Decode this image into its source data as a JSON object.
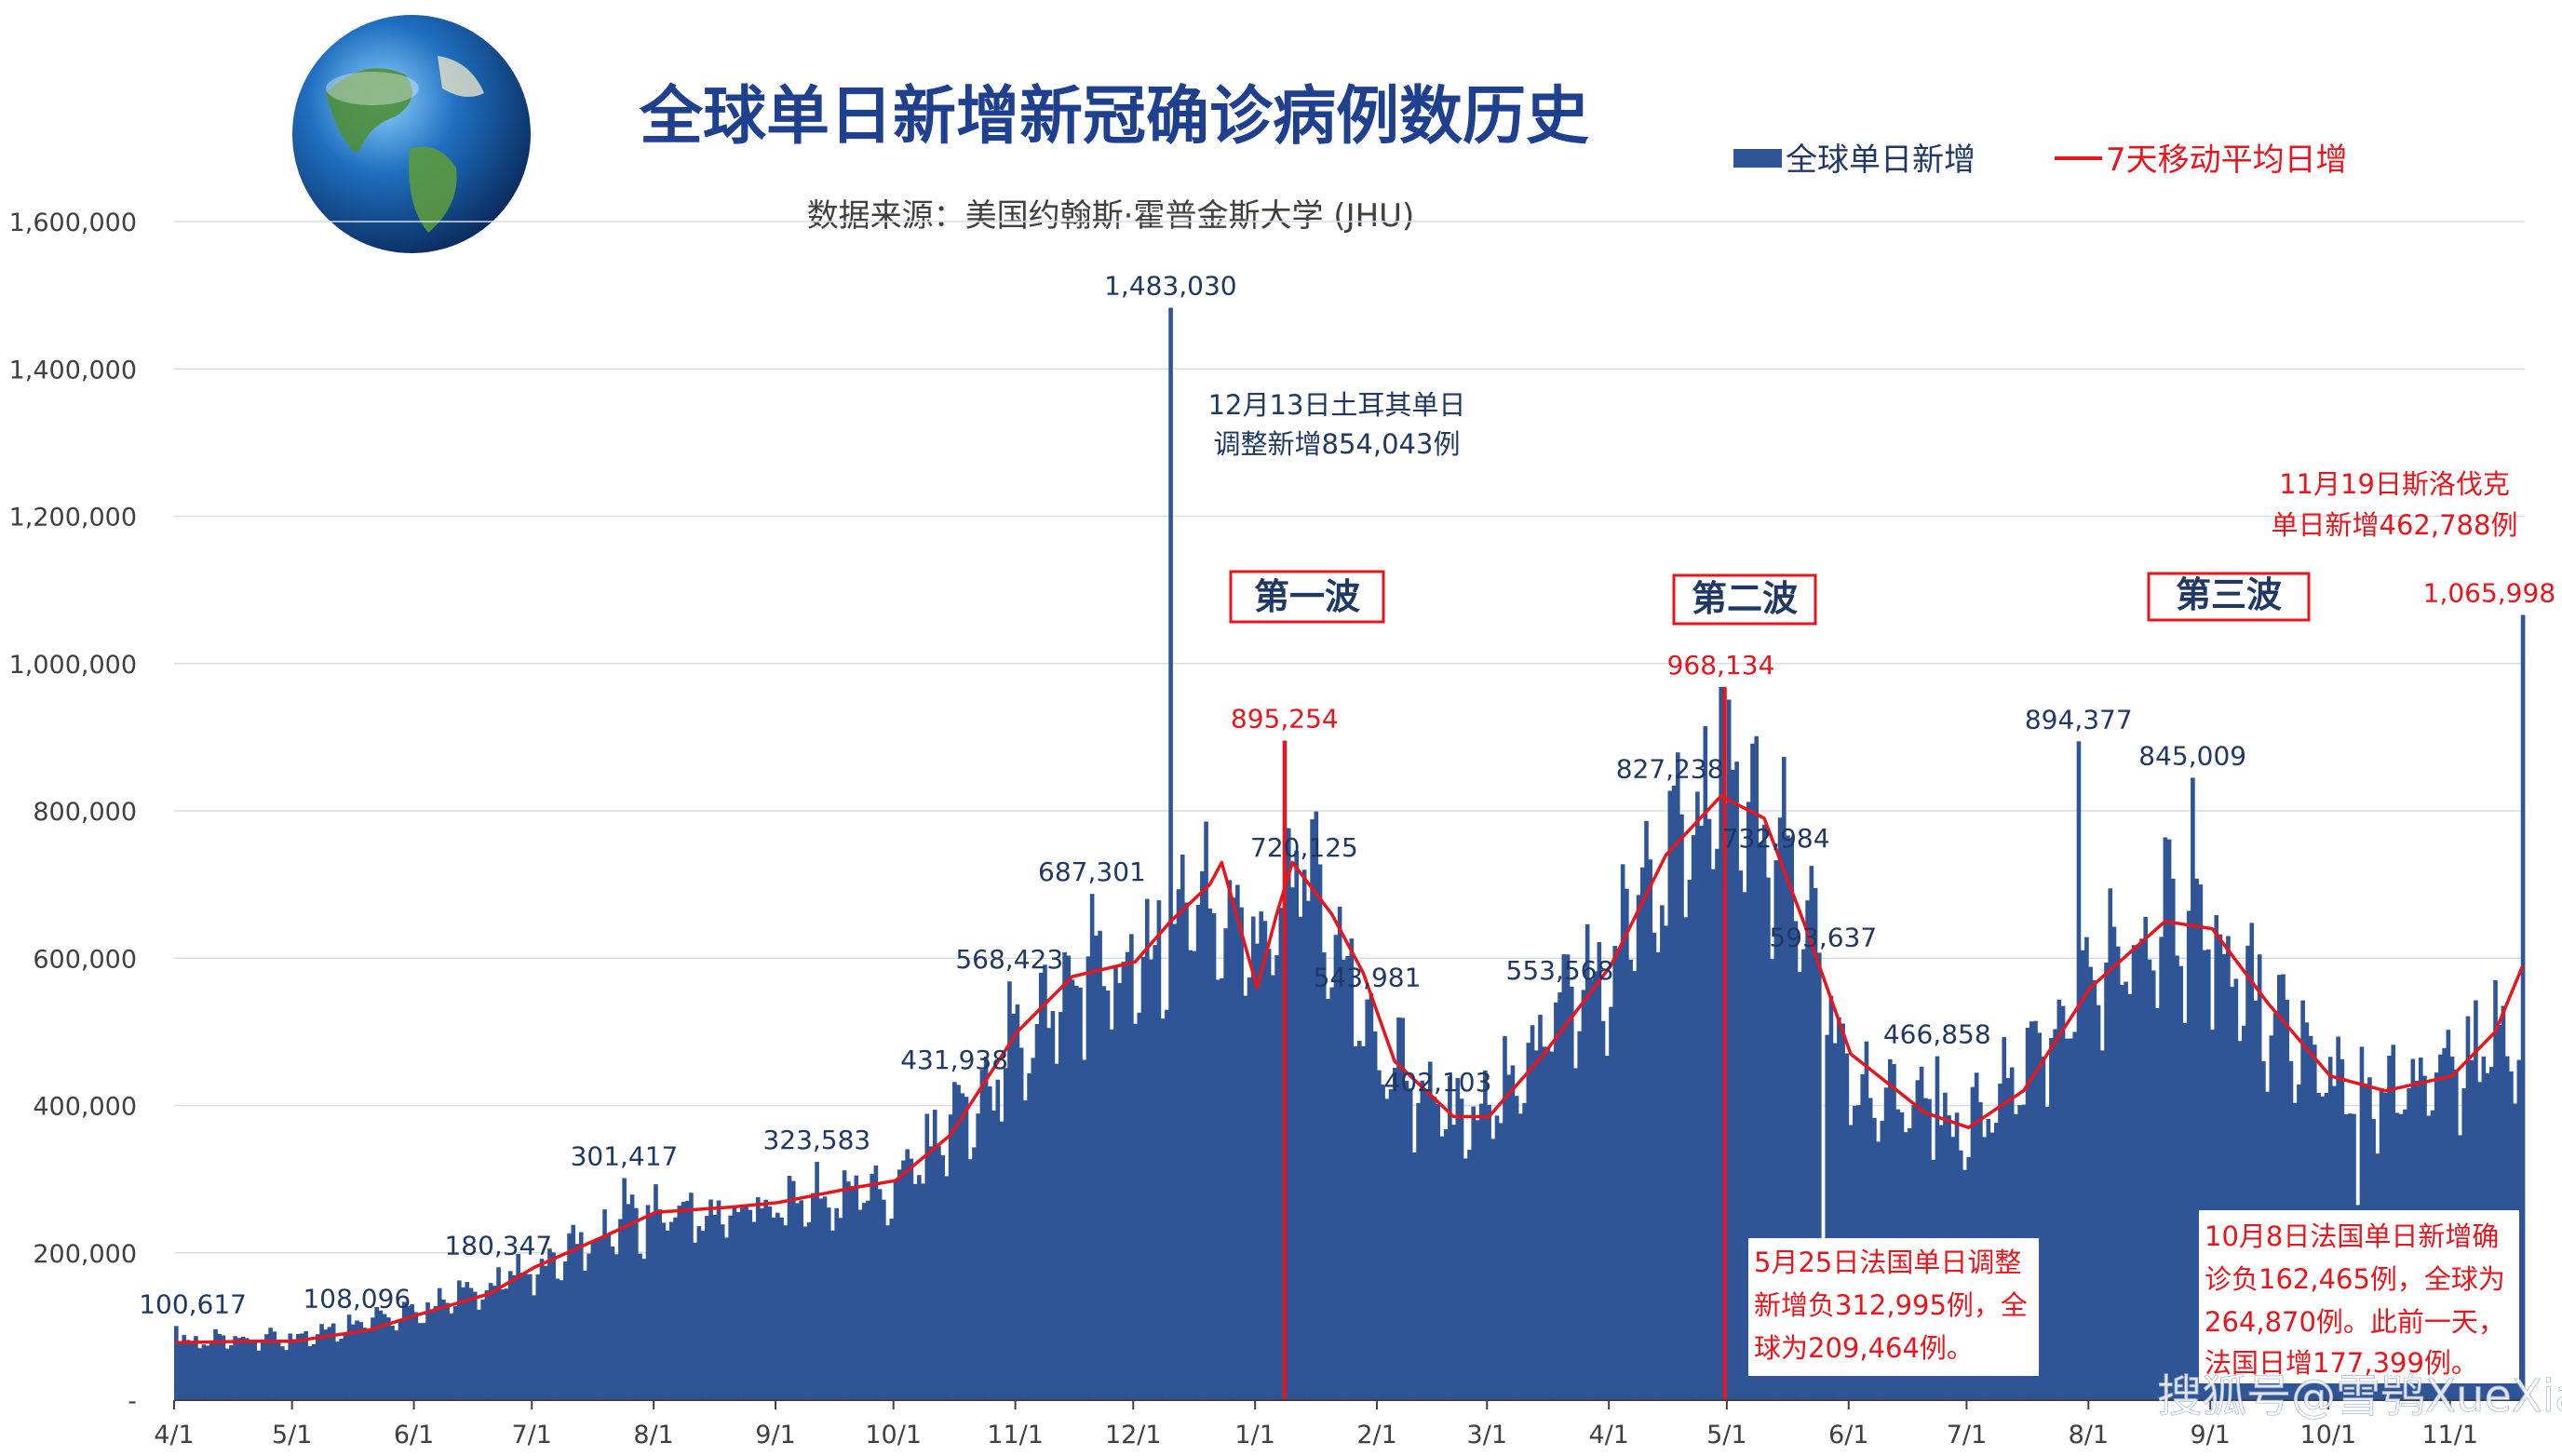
{
  "title": "全球单日新增新冠确诊病例数历史",
  "subtitle": "数据来源：美国约翰斯·霍普金斯大学 (JHU)",
  "watermark": "搜狐号@雪鸮XueXiao",
  "colors": {
    "bar": "#2F5597",
    "line": "#E8161C",
    "title": "#1F3F8F",
    "text": "#1F3864",
    "red": "#E8161C",
    "grid": "#D6DCE5"
  },
  "chart_data": {
    "type": "bar",
    "ylim": [
      0,
      1600000
    ],
    "yticks": [
      0,
      200000,
      400000,
      600000,
      800000,
      1000000,
      1200000,
      1400000,
      1600000
    ],
    "ytick_labels": [
      "-",
      "200,000",
      "400,000",
      "600,000",
      "800,000",
      "1,000,000",
      "1,200,000",
      "1,400,000",
      "1,600,000"
    ],
    "xtick_labels": [
      "4/1",
      "5/1",
      "6/1",
      "7/1",
      "8/1",
      "9/1",
      "10/1",
      "11/1",
      "12/1",
      "1/1",
      "2/1",
      "3/1",
      "4/1",
      "5/1",
      "6/1",
      "7/1",
      "8/1",
      "9/1",
      "10/1",
      "11/1"
    ],
    "x_start": "2020-04-01",
    "x_end": "2021-11-19",
    "legend": {
      "bar_label": "全球单日新增",
      "line_label": "7天移动平均日增",
      "position": "top-right"
    },
    "series": [
      {
        "name": "全球单日新增",
        "kind": "bar",
        "daily_trend_anchors": [
          [
            "2020-04-01",
            80000
          ],
          [
            "2020-05-01",
            85000
          ],
          [
            "2020-06-01",
            120000
          ],
          [
            "2020-07-01",
            180000
          ],
          [
            "2020-08-01",
            255000
          ],
          [
            "2020-09-01",
            265000
          ],
          [
            "2020-10-01",
            295000
          ],
          [
            "2020-10-20",
            400000
          ],
          [
            "2020-11-01",
            470000
          ],
          [
            "2020-11-15",
            570000
          ],
          [
            "2020-12-01",
            590000
          ],
          [
            "2020-12-20",
            680000
          ],
          [
            "2021-01-01",
            640000
          ],
          [
            "2021-01-15",
            700000
          ],
          [
            "2021-02-01",
            480000
          ],
          [
            "2021-02-20",
            380000
          ],
          [
            "2021-03-01",
            400000
          ],
          [
            "2021-03-20",
            520000
          ],
          [
            "2021-04-01",
            600000
          ],
          [
            "2021-04-20",
            780000
          ],
          [
            "2021-04-30",
            820000
          ],
          [
            "2021-05-15",
            750000
          ],
          [
            "2021-06-01",
            430000
          ],
          [
            "2021-06-20",
            380000
          ],
          [
            "2021-07-01",
            370000
          ],
          [
            "2021-07-20",
            480000
          ],
          [
            "2021-08-01",
            600000
          ],
          [
            "2021-08-20",
            660000
          ],
          [
            "2021-09-01",
            640000
          ],
          [
            "2021-09-20",
            500000
          ],
          [
            "2021-10-01",
            430000
          ],
          [
            "2021-10-15",
            420000
          ],
          [
            "2021-11-01",
            450000
          ],
          [
            "2021-11-18",
            520000
          ]
        ],
        "labeled_points": [
          {
            "date": "2020-04-01",
            "value": 100617,
            "label": "100,617"
          },
          {
            "date": "2020-05-17",
            "value": 108096,
            "label": "108,096"
          },
          {
            "date": "2020-06-22",
            "value": 180347,
            "label": "180,347"
          },
          {
            "date": "2020-07-24",
            "value": 301417,
            "label": "301,417"
          },
          {
            "date": "2020-09-11",
            "value": 323583,
            "label": "323,583"
          },
          {
            "date": "2020-10-16",
            "value": 431938,
            "label": "431,938"
          },
          {
            "date": "2020-10-30",
            "value": 568423,
            "label": "568,423"
          },
          {
            "date": "2020-11-20",
            "value": 687301,
            "label": "687,301"
          },
          {
            "date": "2020-12-10",
            "value": 1483030,
            "label": "1,483,030"
          },
          {
            "date": "2021-01-08",
            "value": 895254,
            "label": "895,254",
            "red": true
          },
          {
            "date": "2021-01-13",
            "value": 720125,
            "label": "720,125"
          },
          {
            "date": "2021-01-29",
            "value": 543981,
            "label": "543,981"
          },
          {
            "date": "2021-02-16",
            "value": 402103,
            "label": "402,103"
          },
          {
            "date": "2021-03-19",
            "value": 553568,
            "label": "553,568"
          },
          {
            "date": "2021-04-16",
            "value": 827238,
            "label": "827,238"
          },
          {
            "date": "2021-04-29",
            "value": 968134,
            "label": "968,134",
            "red": true
          },
          {
            "date": "2021-05-13",
            "value": 732984,
            "label": "732,984"
          },
          {
            "date": "2021-05-25",
            "value": 209464,
            "label": "209,464",
            "red": true
          },
          {
            "date": "2021-05-25",
            "value": 593637,
            "label": "593,637"
          },
          {
            "date": "2021-06-23",
            "value": 466858,
            "label": "466,858"
          },
          {
            "date": "2021-07-29",
            "value": 894377,
            "label": "894,377"
          },
          {
            "date": "2021-08-27",
            "value": 845009,
            "label": "845,009"
          },
          {
            "date": "2021-10-08",
            "value": 264870,
            "label": "264,870",
            "red": true
          },
          {
            "date": "2021-11-19",
            "value": 1065998,
            "label": "1,065,998",
            "red": true
          }
        ]
      },
      {
        "name": "7天移动平均日增",
        "kind": "line",
        "points": [
          [
            "2020-04-01",
            78000
          ],
          [
            "2020-04-20",
            80000
          ],
          [
            "2020-05-01",
            80000
          ],
          [
            "2020-05-20",
            95000
          ],
          [
            "2020-06-01",
            115000
          ],
          [
            "2020-06-20",
            145000
          ],
          [
            "2020-07-01",
            180000
          ],
          [
            "2020-07-20",
            225000
          ],
          [
            "2020-08-01",
            255000
          ],
          [
            "2020-08-20",
            262000
          ],
          [
            "2020-09-01",
            268000
          ],
          [
            "2020-09-20",
            288000
          ],
          [
            "2020-10-01",
            298000
          ],
          [
            "2020-10-15",
            360000
          ],
          [
            "2020-11-01",
            500000
          ],
          [
            "2020-11-15",
            575000
          ],
          [
            "2020-12-01",
            595000
          ],
          [
            "2020-12-10",
            650000
          ],
          [
            "2020-12-20",
            700000
          ],
          [
            "2020-12-23",
            730000
          ],
          [
            "2021-01-01",
            560000
          ],
          [
            "2021-01-06",
            660000
          ],
          [
            "2021-01-10",
            730000
          ],
          [
            "2021-01-20",
            660000
          ],
          [
            "2021-01-28",
            580000
          ],
          [
            "2021-02-05",
            460000
          ],
          [
            "2021-02-20",
            385000
          ],
          [
            "2021-03-01",
            385000
          ],
          [
            "2021-03-15",
            470000
          ],
          [
            "2021-04-01",
            590000
          ],
          [
            "2021-04-15",
            740000
          ],
          [
            "2021-04-29",
            820000
          ],
          [
            "2021-05-10",
            790000
          ],
          [
            "2021-05-20",
            650000
          ],
          [
            "2021-06-01",
            470000
          ],
          [
            "2021-06-20",
            390000
          ],
          [
            "2021-07-01",
            370000
          ],
          [
            "2021-07-15",
            420000
          ],
          [
            "2021-08-01",
            560000
          ],
          [
            "2021-08-20",
            650000
          ],
          [
            "2021-09-01",
            640000
          ],
          [
            "2021-09-15",
            540000
          ],
          [
            "2021-10-01",
            440000
          ],
          [
            "2021-10-15",
            420000
          ],
          [
            "2021-11-01",
            440000
          ],
          [
            "2021-11-12",
            500000
          ],
          [
            "2021-11-19",
            590000
          ]
        ]
      }
    ],
    "annotations": [
      {
        "lines": [
          "12月13日土耳其单日",
          "调整新增854,043例"
        ],
        "color": "#1F3864"
      },
      {
        "lines": [
          "11月19日斯洛伐克",
          "单日新增462,788例"
        ],
        "color": "#E8161C"
      },
      {
        "lines": [
          "5月25日法国单日调整",
          "新增负312,995例，全",
          "球为209,464例。"
        ],
        "color": "#E8161C"
      },
      {
        "lines": [
          "10月8日法国单日新增确",
          "诊负162,465例，全球为",
          "264,870例。此前一天，",
          "法国日增177,399例。"
        ],
        "color": "#E8161C"
      }
    ],
    "wave_labels": [
      "第一波",
      "第二波",
      "第三波"
    ],
    "wave_markers": [
      "2021-01-08",
      "2021-04-30"
    ]
  }
}
